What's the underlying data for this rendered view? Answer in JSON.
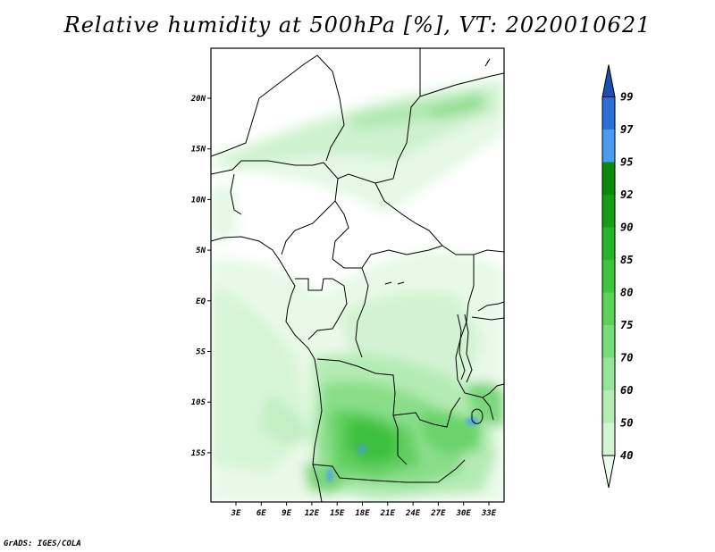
{
  "title": "Relative humidity at 500hPa [%], VT: 2020010621",
  "credit": "GrADS: IGES/COLA",
  "map": {
    "lat_labels": [
      "20N",
      "15N",
      "10N",
      "5N",
      "EQ",
      "5S",
      "10S",
      "15S"
    ],
    "lon_labels": [
      "3E",
      "6E",
      "9E",
      "12E",
      "15E",
      "18E",
      "21E",
      "24E",
      "27E",
      "30E",
      "33E"
    ],
    "variable": "relative humidity",
    "level": "500hPa",
    "units": "%"
  },
  "colorbar": {
    "levels": [
      "40",
      "50",
      "60",
      "70",
      "75",
      "80",
      "85",
      "90",
      "92",
      "95",
      "97",
      "99"
    ],
    "colors": [
      "#eefcee",
      "#d2f5d2",
      "#b4ecb4",
      "#96e496",
      "#78dc78",
      "#5ad25a",
      "#3cc63c",
      "#28b428",
      "#149e14",
      "#0a8a0a",
      "#4a9cf0",
      "#2a70d8",
      "#1a50b4"
    ]
  }
}
